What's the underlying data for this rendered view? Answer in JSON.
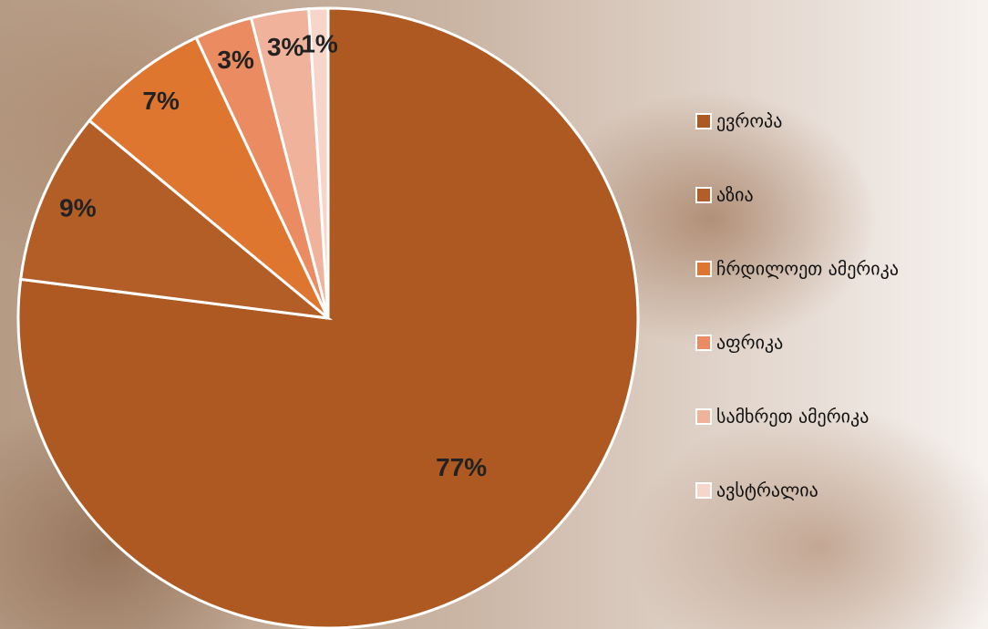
{
  "chart_data": {
    "type": "pie",
    "categories": [
      "ევროპა",
      "აზია",
      "ჩრდილოეთ ამერიკა",
      "აფრიკა",
      "სამხრეთ ამერიკა",
      "ავსტრალია"
    ],
    "values": [
      77,
      9,
      7,
      3,
      3,
      1
    ],
    "value_labels": [
      "77%",
      "9%",
      "7%",
      "3%",
      "3%",
      "1%"
    ],
    "colors": [
      "#ad5921",
      "#b35e27",
      "#df7630",
      "#ea8b62",
      "#f0b29a",
      "#f7d5ca"
    ],
    "legend": "right"
  }
}
